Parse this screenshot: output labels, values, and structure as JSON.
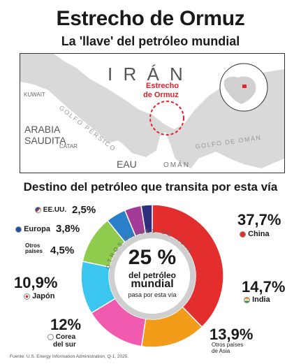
{
  "header": {
    "title": "Estrecho de Ormuz",
    "subtitle": "La 'llave' del petróleo mundial"
  },
  "map": {
    "labels": {
      "iran": "I R Á N",
      "kuwait": "KUWAIT",
      "arabia": "ARABIA",
      "saudita": "SAUDITA",
      "qatar": "CATAR",
      "golfo_persico": "GOLFO PÉRSICO",
      "eau": "EAU",
      "oman": "OMÁN",
      "golfo_oman": "GOLFO DE OMÁN",
      "estrecho_1": "Estrecho",
      "estrecho_2": "de Ormuz"
    },
    "colors": {
      "land": "#ffffff",
      "sea": "#d9d9d9",
      "accent": "#e8202a"
    }
  },
  "section_title": "Destino del petróleo que transita por esta vía",
  "ring_text": "OTROS PAÍSES DE ASIA",
  "center": {
    "value": "25 %",
    "line1": "del petróleo",
    "line2": "mundial",
    "line3": "pasa por esta vía"
  },
  "chart_data": {
    "type": "pie",
    "title": "Destino del petróleo que transita por esta vía",
    "categories": [
      "China",
      "India",
      "Otros países de Asia",
      "Corea del sur",
      "Japón",
      "Otros países",
      "Europa",
      "EE.UU."
    ],
    "values": [
      37.7,
      14.7,
      13.9,
      12.0,
      10.9,
      4.5,
      3.8,
      2.5
    ],
    "labels": [
      "37,7%",
      "14,7%",
      "13,9%",
      "12%",
      "10,9%",
      "4,5%",
      "3,8%",
      "2,5%"
    ],
    "colors": [
      "#e42d2d",
      "#f39c1a",
      "#f05bb0",
      "#3ac6ee",
      "#8fcb4d",
      "#2a7fc9",
      "#a23c97",
      "#2f2f7e"
    ]
  },
  "legend": {
    "china": {
      "value": "37,7%",
      "name": "China"
    },
    "india": {
      "value": "14,7%",
      "name": "India"
    },
    "otros_asia": {
      "value": "13,9%",
      "name_1": "Otros países",
      "name_2": "de Asia"
    },
    "corea": {
      "value": "12%",
      "name_1": "Corea",
      "name_2": "del sur"
    },
    "japon": {
      "value": "10,9%",
      "name": "Japón"
    },
    "otros": {
      "value": "4,5%",
      "name_1": "Otros",
      "name_2": "países"
    },
    "europa": {
      "value": "3,8%",
      "name": "Europa"
    },
    "eeuu": {
      "value": "2,5%",
      "name": "EE.UU."
    }
  },
  "source": "Fuente: U.S. Energy Information Administration, Q-1, 2025."
}
